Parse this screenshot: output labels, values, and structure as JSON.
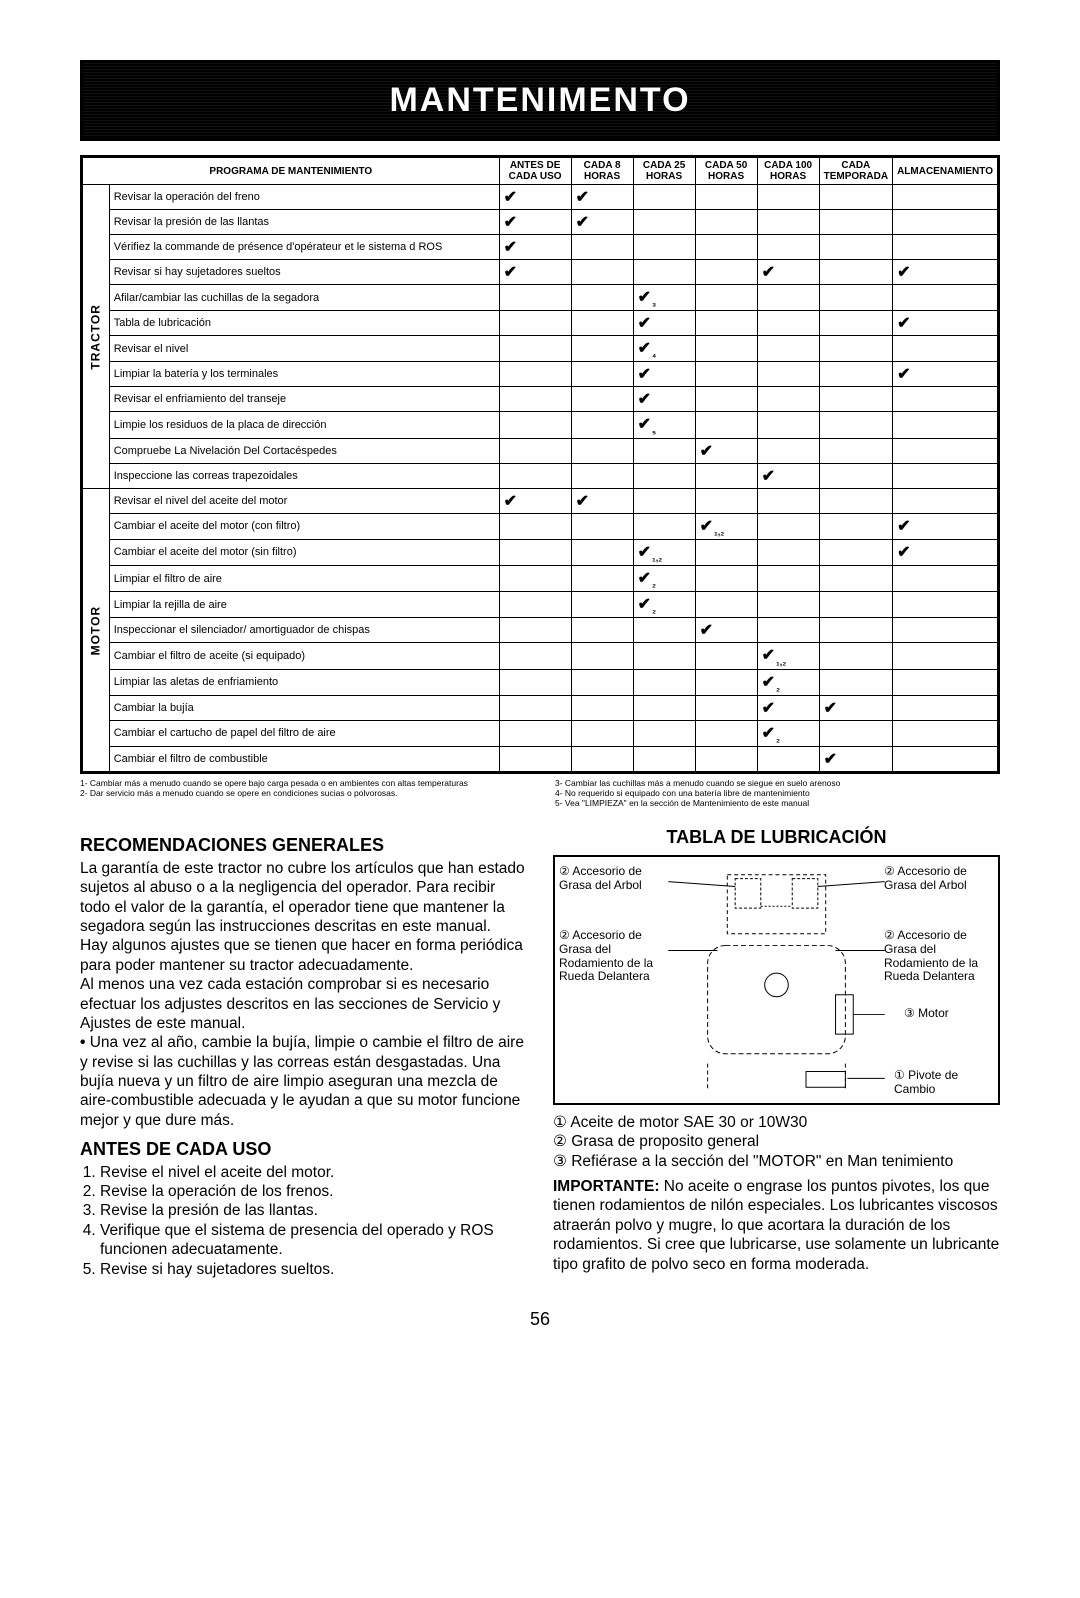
{
  "banner": "MANTENIMENTO",
  "table": {
    "program_header": "PROGRAMA DE MANTENIMIENTO",
    "col_headers": [
      "ANTES DE CADA USO",
      "CADA 8 HORAS",
      "CADA 25 HORAS",
      "CADA 50 HORAS",
      "CADA 100 HORAS",
      "CADA TEMPORADA",
      "ALMACENAMIENTO"
    ],
    "section1_label": "TRACTOR",
    "section2_label": "MOTOR",
    "rows1": [
      {
        "label": "Revisar la operación del freno",
        "c": [
          "✔",
          "✔",
          "",
          "",
          "",
          "",
          ""
        ]
      },
      {
        "label": "Revisar la presión de las llantas",
        "c": [
          "✔",
          "✔",
          "",
          "",
          "",
          "",
          ""
        ]
      },
      {
        "label": "Vérifiez la commande de présence d'opérateur et le sistema d ROS",
        "c": [
          "✔",
          "",
          "",
          "",
          "",
          "",
          ""
        ]
      },
      {
        "label": "Revisar si hay sujetadores sueltos",
        "c": [
          "✔",
          "",
          "",
          "",
          "✔",
          "",
          "✔"
        ]
      },
      {
        "label": "Afilar/cambiar las cuchillas de la segadora",
        "c": [
          "",
          "",
          "✔₃",
          "",
          "",
          "",
          ""
        ]
      },
      {
        "label": "Tabla de lubricación",
        "c": [
          "",
          "",
          "✔",
          "",
          "",
          "",
          "✔"
        ]
      },
      {
        "label": "Revisar el nivel",
        "c": [
          "",
          "",
          "✔₄",
          "",
          "",
          "",
          ""
        ]
      },
      {
        "label": "Limpiar la batería y los terminales",
        "c": [
          "",
          "",
          "✔",
          "",
          "",
          "",
          "✔"
        ]
      },
      {
        "label": "Revisar el enfriamiento del transeje",
        "c": [
          "",
          "",
          "✔",
          "",
          "",
          "",
          ""
        ]
      },
      {
        "label": "Limpie los residuos de la placa de dirección",
        "c": [
          "",
          "",
          "✔₅",
          "",
          "",
          "",
          ""
        ]
      },
      {
        "label": "Compruebe La Nivelación Del Cortacéspedes",
        "c": [
          "",
          "",
          "",
          "✔",
          "",
          "",
          ""
        ]
      },
      {
        "label": "Inspeccione las correas trapezoidales",
        "c": [
          "",
          "",
          "",
          "",
          "✔",
          "",
          ""
        ]
      }
    ],
    "rows2": [
      {
        "label": "Revisar el nivel del aceite del motor",
        "c": [
          "✔",
          "✔",
          "",
          "",
          "",
          "",
          ""
        ]
      },
      {
        "label": "Cambiar el aceite del motor (con filtro)",
        "c": [
          "",
          "",
          "",
          "✔ ₁,₂",
          "",
          "",
          "✔"
        ]
      },
      {
        "label": "Cambiar el aceite del motor (sin filtro)",
        "c": [
          "",
          "",
          "✔ ₁,₂",
          "",
          "",
          "",
          "✔"
        ]
      },
      {
        "label": "Limpiar el filtro de aire",
        "c": [
          "",
          "",
          "✔₂",
          "",
          "",
          "",
          ""
        ]
      },
      {
        "label": "Limpiar la rejilla de aire",
        "c": [
          "",
          "",
          "✔₂",
          "",
          "",
          "",
          ""
        ]
      },
      {
        "label": "Inspeccionar el silenciador/ amortiguador de chispas",
        "c": [
          "",
          "",
          "",
          "✔",
          "",
          "",
          ""
        ]
      },
      {
        "label": "Cambiar el filtro de aceite (si equipado)",
        "c": [
          "",
          "",
          "",
          "",
          "✔₁,₂",
          "",
          ""
        ]
      },
      {
        "label": "Limpiar las aletas de enfriamiento",
        "c": [
          "",
          "",
          "",
          "",
          "✔ ₂",
          "",
          ""
        ]
      },
      {
        "label": "Cambiar la bujía",
        "c": [
          "",
          "",
          "",
          "",
          "✔",
          "✔",
          ""
        ]
      },
      {
        "label": "Cambiar el cartucho de papel del filtro de aire",
        "c": [
          "",
          "",
          "",
          "",
          "✔₂",
          "",
          ""
        ]
      },
      {
        "label": "Cambiar el filtro de combustible",
        "c": [
          "",
          "",
          "",
          "",
          "",
          "✔",
          ""
        ]
      }
    ]
  },
  "footnotes_left": [
    "1- Cambiar más a menudo cuando se opere bajo carga pesada o en ambientes con altas temperaturas",
    "2- Dar servicio más a menudo cuando se opere en condiciones sucias o polvorosas."
  ],
  "footnotes_right": [
    "3- Cambiar las cuchillas más a menudo cuando se siegue en suelo arenoso",
    "4- No requerido si equipado con una batería libre de mantenimiento",
    "5- Vea \"LIMPIEZA\" en la sección de Mantenimiento de este manual"
  ],
  "left": {
    "h1": "RECOMENDACIONES GENERALES",
    "p1": "La garantía de este tractor no cubre los artículos que han estado sujetos al abuso o a la negligencia del operador. Para recibir todo el valor de la garantía, el operador tiene que mantener la segadora según las instrucciones descritas en este manual.",
    "p2": "Hay algunos ajustes que se tienen que hacer en forma periódica para poder mantener su tractor adecuadamente.",
    "p3": "Al menos una vez cada estación comprobar si es necesario efectuar los adjustes descritos en las secciones de Servicio y Ajustes de este manual.",
    "bullet": "Una vez al año, cambie la bujía, limpie o cambie el filtro de aire y revise si las cuchillas y las correas están desgastadas. Una bujía nueva y un filtro de aire limpio aseguran una mezcla de aire-combustible adecuada y le ayudan a que su motor funcione mejor y que dure más.",
    "h2": "ANTES DE CADA USO",
    "steps": [
      "Revise el nivel el aceite del motor.",
      "Revise la operación de los frenos.",
      "Revise la presión de las llantas.",
      "Verifique que el sistema de presencia del operado y ROS funcionen adecuatamente.",
      "Revise si hay sujetadores sueltos."
    ]
  },
  "right": {
    "h1": "TABLA DE LUBRICACIÓN",
    "lbl_tl": "② Accesorio de Grasa del Arbol",
    "lbl_tr": "② Accesorio de Grasa del Arbol",
    "lbl_ml": "② Accesorio de Grasa del Rodamiento de la Rueda Delantera",
    "lbl_mr": "② Accesorio de Grasa del Rodamiento de la Rueda Delantera",
    "lbl_motor": "③ Motor",
    "lbl_pivot": "① Pivote de Cambio",
    "legend": [
      "① Aceite de motor SAE 30 or 10W30",
      "② Grasa de proposito general",
      "③ Refiérase a la sección del \"MOTOR\" en Man tenimiento"
    ],
    "important_label": "IMPORTANTE:",
    "important_text": " No aceite o engrase los puntos pivotes, los que tienen rodamientos de nilón especiales. Los lubricantes viscosos atraerán polvo y mugre, lo que acortara la duración de los rodamientos. Si cree que lubricarse, use solamente un lubricante tipo grafito de polvo seco en forma moderada."
  },
  "page": "56"
}
